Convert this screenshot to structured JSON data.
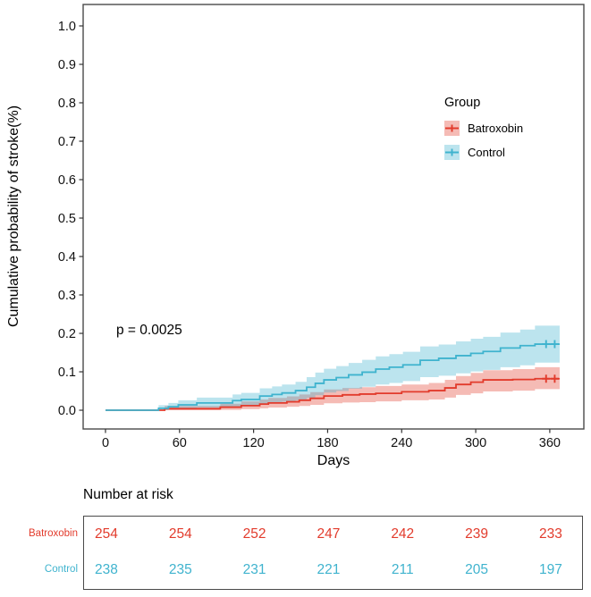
{
  "chart_data": {
    "type": "line",
    "subtype": "kaplan-meier-step-with-confidence-bands",
    "title": "",
    "xlabel": "Days",
    "ylabel": "Cumulative probability of stroke(%)",
    "annotation": "p = 0.0025",
    "x_ticks": [
      0,
      60,
      120,
      180,
      240,
      300,
      360
    ],
    "y_tick_labels": [
      "0.0",
      "0.1",
      "0.2",
      "0.3",
      "0.4",
      "0.5",
      "0.6",
      "0.7",
      "0.8",
      "0.9",
      "1.0"
    ],
    "xlim": [
      -18.1,
      387.6
    ],
    "ylim": [
      -0.0488,
      1.0558
    ],
    "grid": false,
    "panel_border_color": "#4a4a4a",
    "legend": {
      "title": "Group",
      "position": "inside-right"
    },
    "band_opacity": 0.35,
    "series": [
      {
        "name": "Batroxobin",
        "color": "#e23b2c",
        "points": [
          [
            0,
            0.0,
            0.0,
            0.0
          ],
          [
            48,
            0.004,
            0.0,
            0.011
          ],
          [
            93,
            0.008,
            0.001,
            0.017
          ],
          [
            110,
            0.012,
            0.003,
            0.023
          ],
          [
            125,
            0.016,
            0.005,
            0.028
          ],
          [
            132,
            0.019,
            0.007,
            0.032
          ],
          [
            147,
            0.022,
            0.009,
            0.036
          ],
          [
            157,
            0.026,
            0.011,
            0.041
          ],
          [
            166,
            0.031,
            0.014,
            0.047
          ],
          [
            177,
            0.037,
            0.018,
            0.054
          ],
          [
            192,
            0.04,
            0.02,
            0.058
          ],
          [
            206,
            0.042,
            0.021,
            0.06
          ],
          [
            219,
            0.044,
            0.023,
            0.063
          ],
          [
            240,
            0.048,
            0.026,
            0.067
          ],
          [
            262,
            0.051,
            0.028,
            0.071
          ],
          [
            275,
            0.058,
            0.033,
            0.079
          ],
          [
            284,
            0.067,
            0.04,
            0.089
          ],
          [
            296,
            0.073,
            0.044,
            0.097
          ],
          [
            306,
            0.079,
            0.049,
            0.104
          ],
          [
            330,
            0.08,
            0.051,
            0.107
          ],
          [
            348,
            0.082,
            0.055,
            0.112
          ],
          [
            368,
            0.082,
            0.055,
            0.112
          ]
        ],
        "censor_marks": [
          [
            357,
            0.082
          ],
          [
            364,
            0.082
          ]
        ]
      },
      {
        "name": "Control",
        "color": "#3fb3ce",
        "points": [
          [
            0,
            0.0,
            0.0,
            0.0
          ],
          [
            43,
            0.005,
            0.001,
            0.013
          ],
          [
            51,
            0.009,
            0.002,
            0.019
          ],
          [
            59,
            0.014,
            0.004,
            0.026
          ],
          [
            74,
            0.019,
            0.007,
            0.033
          ],
          [
            103,
            0.025,
            0.01,
            0.041
          ],
          [
            110,
            0.028,
            0.012,
            0.045
          ],
          [
            125,
            0.037,
            0.017,
            0.057
          ],
          [
            135,
            0.041,
            0.02,
            0.062
          ],
          [
            143,
            0.045,
            0.022,
            0.067
          ],
          [
            154,
            0.051,
            0.026,
            0.074
          ],
          [
            163,
            0.06,
            0.032,
            0.086
          ],
          [
            170,
            0.07,
            0.039,
            0.098
          ],
          [
            177,
            0.079,
            0.046,
            0.108
          ],
          [
            187,
            0.085,
            0.05,
            0.115
          ],
          [
            197,
            0.092,
            0.056,
            0.123
          ],
          [
            208,
            0.099,
            0.061,
            0.131
          ],
          [
            219,
            0.107,
            0.067,
            0.14
          ],
          [
            230,
            0.112,
            0.071,
            0.146
          ],
          [
            241,
            0.118,
            0.076,
            0.152
          ],
          [
            255,
            0.13,
            0.086,
            0.166
          ],
          [
            270,
            0.135,
            0.09,
            0.171
          ],
          [
            284,
            0.142,
            0.096,
            0.179
          ],
          [
            296,
            0.148,
            0.101,
            0.186
          ],
          [
            306,
            0.153,
            0.105,
            0.191
          ],
          [
            320,
            0.162,
            0.112,
            0.202
          ],
          [
            336,
            0.168,
            0.117,
            0.21
          ],
          [
            348,
            0.172,
            0.124,
            0.22
          ],
          [
            368,
            0.172,
            0.124,
            0.22
          ]
        ],
        "censor_marks": [
          [
            357,
            0.172
          ],
          [
            364,
            0.172
          ]
        ]
      }
    ]
  },
  "risk_table": {
    "title": "Number at risk",
    "column_days": [
      0,
      60,
      120,
      180,
      240,
      300,
      360
    ],
    "rows": [
      {
        "label": "Batroxobin",
        "color": "#e23b2c",
        "values": [
          254,
          254,
          252,
          247,
          242,
          239,
          233
        ]
      },
      {
        "label": "Control",
        "color": "#3fb3ce",
        "values": [
          238,
          235,
          231,
          221,
          211,
          205,
          197
        ]
      }
    ]
  }
}
